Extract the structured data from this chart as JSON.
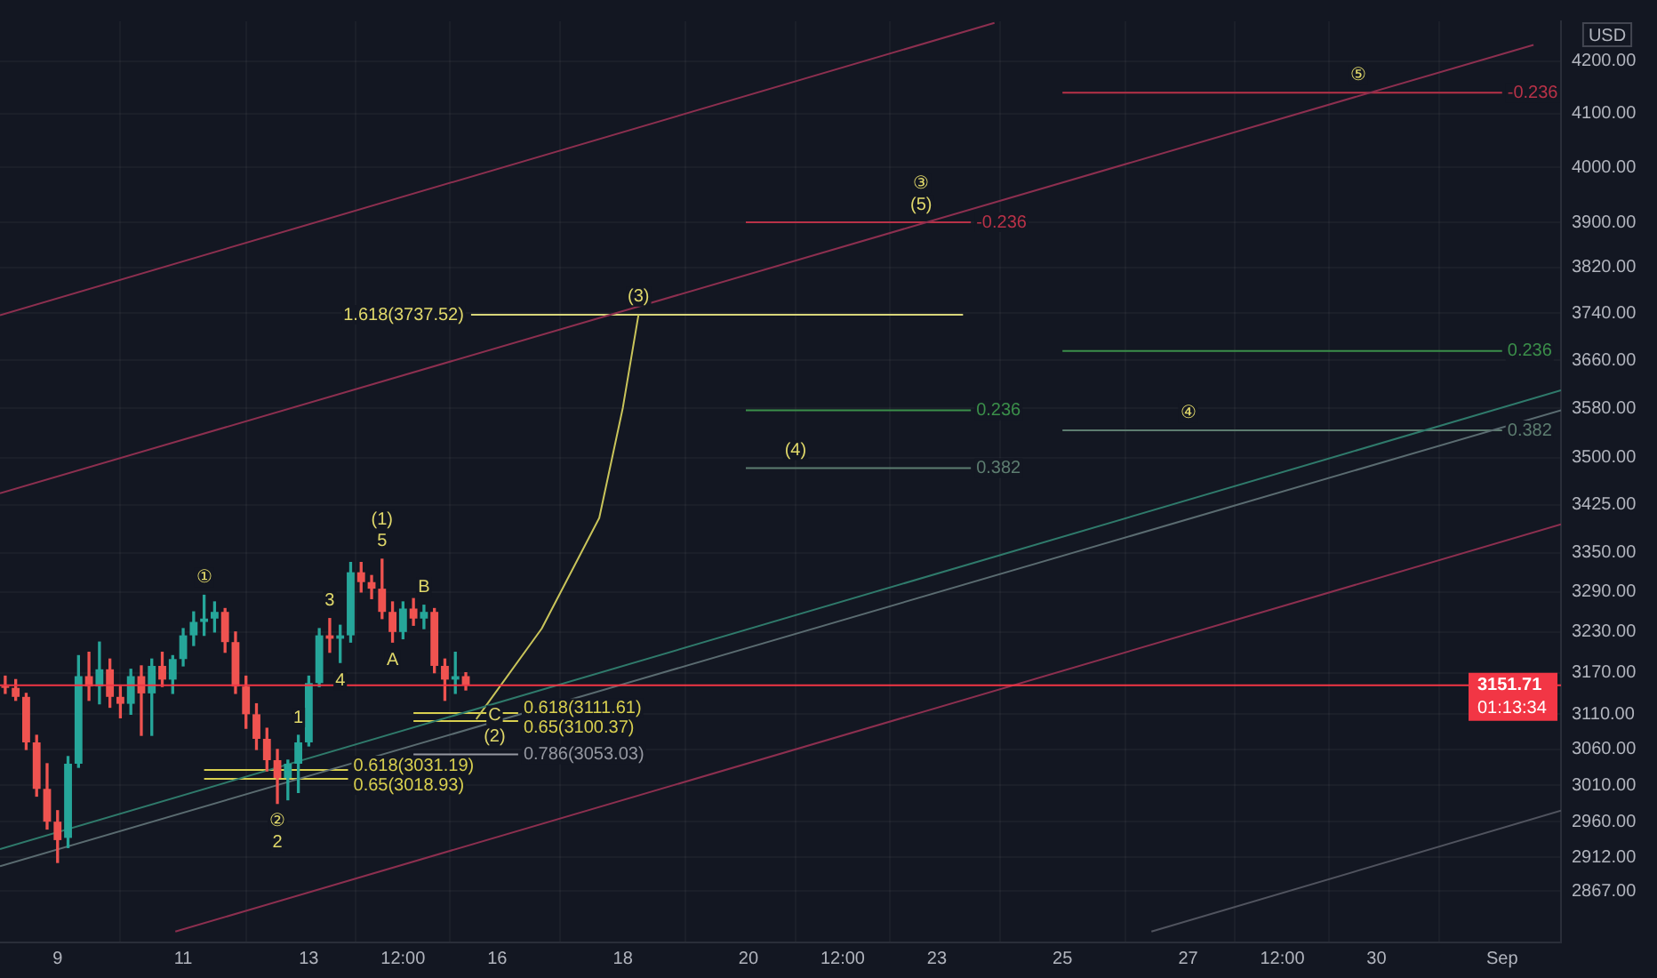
{
  "chart_data": {
    "type": "candlestick",
    "ylabel": "USD",
    "log": true,
    "grid": true,
    "x": [
      "--08-08T04:00",
      "--08-08T08:00",
      "--08-08T12:00",
      "--08-08T16:00",
      "--08-08T20:00",
      "--08-09T00:00",
      "--08-09T04:00",
      "--08-09T08:00",
      "--08-09T12:00",
      "--08-09T16:00",
      "--08-09T20:00",
      "--08-10T00:00",
      "--08-10T04:00",
      "--08-10T08:00",
      "--08-10T12:00",
      "--08-10T16:00",
      "--08-10T20:00",
      "--08-11T00:00",
      "--08-11T04:00",
      "--08-11T08:00",
      "--08-11T12:00",
      "--08-11T16:00",
      "--08-11T20:00",
      "--08-12T00:00",
      "--08-12T04:00",
      "--08-12T08:00",
      "--08-12T12:00",
      "--08-12T16:00",
      "--08-12T20:00",
      "--08-13T00:00",
      "--08-13T04:00",
      "--08-13T08:00",
      "--08-13T12:00",
      "--08-13T16:00",
      "--08-13T20:00",
      "--08-14T00:00",
      "--08-14T04:00",
      "--08-14T08:00",
      "--08-14T12:00",
      "--08-14T16:00",
      "--08-14T20:00",
      "--08-15T00:00",
      "--08-15T04:00",
      "--08-15T08:00",
      "--08-15T12:00"
    ],
    "ohlc": [
      [
        3150,
        3165,
        3140,
        3148
      ],
      [
        3148,
        3160,
        3130,
        3135
      ],
      [
        3135,
        3140,
        3060,
        3070
      ],
      [
        3070,
        3080,
        2995,
        3005
      ],
      [
        3005,
        3040,
        2950,
        2960
      ],
      [
        2960,
        2975,
        2905,
        2935
      ],
      [
        2938,
        3050,
        2925,
        3040
      ],
      [
        3040,
        3195,
        3035,
        3165
      ],
      [
        3165,
        3200,
        3130,
        3150
      ],
      [
        3150,
        3215,
        3125,
        3175
      ],
      [
        3175,
        3190,
        3120,
        3135
      ],
      [
        3135,
        3150,
        3105,
        3125
      ],
      [
        3125,
        3175,
        3110,
        3165
      ],
      [
        3165,
        3180,
        3080,
        3140
      ],
      [
        3140,
        3190,
        3080,
        3180
      ],
      [
        3180,
        3200,
        3150,
        3160
      ],
      [
        3160,
        3195,
        3140,
        3190
      ],
      [
        3190,
        3235,
        3180,
        3225
      ],
      [
        3225,
        3260,
        3210,
        3245
      ],
      [
        3245,
        3285,
        3225,
        3250
      ],
      [
        3250,
        3275,
        3230,
        3260
      ],
      [
        3260,
        3265,
        3200,
        3215
      ],
      [
        3215,
        3230,
        3140,
        3150
      ],
      [
        3150,
        3165,
        3090,
        3110
      ],
      [
        3110,
        3125,
        3060,
        3075
      ],
      [
        3075,
        3090,
        3030,
        3045
      ],
      [
        3045,
        3060,
        2985,
        3020
      ],
      [
        3020,
        3045,
        2990,
        3040
      ],
      [
        3040,
        3080,
        3000,
        3070
      ],
      [
        3070,
        3165,
        3065,
        3155
      ],
      [
        3155,
        3235,
        3150,
        3225
      ],
      [
        3225,
        3250,
        3200,
        3220
      ],
      [
        3220,
        3240,
        3185,
        3225
      ],
      [
        3225,
        3335,
        3215,
        3320
      ],
      [
        3320,
        3335,
        3290,
        3305
      ],
      [
        3305,
        3315,
        3280,
        3295
      ],
      [
        3295,
        3340,
        3250,
        3260
      ],
      [
        3260,
        3275,
        3215,
        3230
      ],
      [
        3230,
        3275,
        3220,
        3265
      ],
      [
        3265,
        3280,
        3240,
        3250
      ],
      [
        3250,
        3270,
        3235,
        3260
      ],
      [
        3260,
        3265,
        3170,
        3180
      ],
      [
        3180,
        3190,
        3130,
        3160
      ],
      [
        3160,
        3200,
        3140,
        3165
      ],
      [
        3165,
        3170,
        3145,
        3151.71
      ]
    ],
    "colors": [
      "#ef5350",
      "#ef5350",
      "#ef5350",
      "#ef5350",
      "#ef5350",
      "#ef5350",
      "#26a69a",
      "#26a69a",
      "#ef5350",
      "#26a69a",
      "#ef5350",
      "#ef5350",
      "#26a69a",
      "#ef5350",
      "#26a69a",
      "#ef5350",
      "#26a69a",
      "#26a69a",
      "#26a69a",
      "#26a69a",
      "#26a69a",
      "#ef5350",
      "#ef5350",
      "#ef5350",
      "#ef5350",
      "#ef5350",
      "#ef5350",
      "#26a69a",
      "#26a69a",
      "#26a69a",
      "#26a69a",
      "#ef5350",
      "#26a69a",
      "#26a69a",
      "#ef5350",
      "#ef5350",
      "#ef5350",
      "#ef5350",
      "#26a69a",
      "#ef5350",
      "#26a69a",
      "#ef5350",
      "#ef5350",
      "#26a69a",
      "#ef5350"
    ],
    "series": [
      {
        "type": "line",
        "color": "#8c2f4f",
        "x": [
          "--08-08T02:00",
          "--08-23T22:00"
        ],
        "values": [
          3737,
          4275
        ]
      },
      {
        "type": "line",
        "color": "#8c2f4f",
        "x": [
          "--08-08T02:00",
          "--09-01T12:00"
        ],
        "values": [
          3443,
          4232
        ]
      },
      {
        "type": "line",
        "color": "#8c2f4f",
        "x": [
          "--08-10T21:00",
          "--09-01T22:30"
        ],
        "values": [
          2814,
          3394
        ]
      },
      {
        "type": "line",
        "color": "#50535e",
        "x": [
          "--08-26T10:00",
          "--09-01T22:30"
        ],
        "values": [
          2814,
          2975
        ]
      },
      {
        "type": "line",
        "color": "#2f7a6b",
        "x": [
          "--08-08T02:00",
          "--09-01T22:30"
        ],
        "values": [
          2923,
          3610
        ]
      },
      {
        "type": "line",
        "color": "#5a6b70",
        "x": [
          "--08-08T02:00",
          "--09-01T22:30"
        ],
        "values": [
          2900,
          3577
        ]
      },
      {
        "type": "line",
        "color": "#c9c45a",
        "x": [
          "--08-15T16:00",
          "--08-16T17:00",
          "--08-17T15:00",
          "--08-18T00:00",
          "--08-18T06:00"
        ],
        "values": [
          3103,
          3235,
          3404,
          3581,
          3738
        ]
      },
      {
        "type": "line",
        "name": "0.618(3031.19)",
        "color": "#d8cf4f",
        "x": [
          "--08-11T08:00",
          "--08-13T15:00"
        ],
        "values": [
          3031.19,
          3031.19
        ]
      },
      {
        "type": "line",
        "name": "0.65(3018.93)",
        "color": "#d8cf4f",
        "x": [
          "--08-11T08:00",
          "--08-13T15:00"
        ],
        "values": [
          3018.93,
          3018.93
        ]
      },
      {
        "type": "line",
        "name": "0.618(3111.61)",
        "color": "#d8cf4f",
        "x": [
          "--08-14T16:00",
          "--08-16T08:00"
        ],
        "values": [
          3111.61,
          3111.61
        ]
      },
      {
        "type": "line",
        "name": "0.65(3100.37)",
        "color": "#d8cf4f",
        "x": [
          "--08-14T16:00",
          "--08-16T08:00"
        ],
        "values": [
          3100.37,
          3100.37
        ]
      },
      {
        "type": "line",
        "name": "0.786(3053.03)",
        "color": "#9598a1",
        "x": [
          "--08-14T16:00",
          "--08-16T08:00"
        ],
        "values": [
          3053.03,
          3053.03
        ]
      },
      {
        "type": "line",
        "color": "#d8d67a",
        "x": [
          "--08-15T14:00",
          "--08-23T10:00"
        ],
        "values": [
          3737.52,
          3737.52
        ]
      },
      {
        "type": "line",
        "name": "-0.236",
        "color": "#b83248",
        "x": [
          "--08-19T23:00",
          "--08-23T13:00"
        ],
        "values": [
          3900,
          3900
        ]
      },
      {
        "type": "line",
        "name": "0.236",
        "color": "#3b8f4a",
        "x": [
          "--08-19T23:00",
          "--08-23T13:00"
        ],
        "values": [
          3577,
          3577
        ]
      },
      {
        "type": "line",
        "name": "0.382",
        "color": "#5d7d70",
        "x": [
          "--08-19T23:00",
          "--08-23T13:00"
        ],
        "values": [
          3483,
          3483
        ]
      },
      {
        "type": "line",
        "name": "-0.236",
        "color": "#b83248",
        "x": [
          "--08-25T00:00",
          "--09-01T00:00"
        ],
        "values": [
          4140,
          4140
        ]
      },
      {
        "type": "line",
        "name": "0.236",
        "color": "#3b8f4a",
        "x": [
          "--08-25T00:00",
          "--09-01T00:00"
        ],
        "values": [
          3676,
          3676
        ]
      },
      {
        "type": "line",
        "name": "0.382",
        "color": "#5d7d70",
        "x": [
          "--08-25T00:00",
          "--09-01T00:00"
        ],
        "values": [
          3544,
          3544
        ]
      }
    ],
    "ref_lines": [
      {
        "axis": "y",
        "value": 3151.71,
        "label": "3151.71",
        "color": "#f23645"
      }
    ],
    "annotations": [
      {
        "text": "1.618(3737.52)",
        "x": "--08-15T14:00",
        "y": 3737.52
      },
      {
        "text": "①",
        "x": "--08-11T08:00",
        "y": 3285
      },
      {
        "text": "5",
        "x": "--08-14T04:00",
        "y": 3340
      },
      {
        "text": "(1)",
        "x": "--08-14T04:00",
        "y": 3340
      },
      {
        "text": "3",
        "x": "--08-13T08:00",
        "y": 3250
      },
      {
        "text": "4",
        "x": "--08-13T12:00",
        "y": 3185
      },
      {
        "text": "B",
        "x": "--08-14T20:00",
        "y": 3270
      },
      {
        "text": "A",
        "x": "--08-14T08:00",
        "y": 3215
      },
      {
        "text": "②",
        "x": "--08-12T12:00",
        "y": 2985
      },
      {
        "text": "2",
        "x": "--08-12T12:00",
        "y": 2985
      },
      {
        "text": "1",
        "x": "--08-12T20:00",
        "y": 3080
      },
      {
        "text": "(2)",
        "x": "--08-15T23:00",
        "y": 3053.03
      },
      {
        "text": "C",
        "x": "--08-15T23:00",
        "y": 3053.03
      },
      {
        "text": "(3)",
        "x": "--08-18T06:00",
        "y": 3738
      },
      {
        "text": "(5)",
        "x": "--08-22T18:00",
        "y": 3900
      },
      {
        "text": "③",
        "x": "--08-22T18:00",
        "y": 3900
      },
      {
        "text": "(4)",
        "x": "--08-20T18:00",
        "y": 3483
      },
      {
        "text": "④",
        "x": "--08-27T00:00",
        "y": 3544
      },
      {
        "text": "⑤",
        "x": "--08-29T17:00",
        "y": 4140
      },
      "01:13:34"
    ],
    "xlim": [
      "--08-08T02:00",
      "--09-01T22:30"
    ],
    "xticks": [
      {
        "value": "--08-09",
        "label": "9"
      },
      {
        "value": "--08-11",
        "label": "11"
      },
      {
        "value": "--08-13",
        "label": "13"
      },
      {
        "value": "--08-14T12:00",
        "label": "12:00"
      },
      {
        "value": "--08-16",
        "label": "16"
      },
      {
        "value": "--08-18",
        "label": "18"
      },
      {
        "value": "--08-20",
        "label": "20"
      },
      {
        "value": "--08-21T12:00",
        "label": "12:00"
      },
      {
        "value": "--08-23",
        "label": "23"
      },
      {
        "value": "--08-25",
        "label": "25"
      },
      {
        "value": "--08-27",
        "label": "27"
      },
      {
        "value": "--08-28T12:00",
        "label": "12:00"
      },
      {
        "value": "--08-30",
        "label": "30"
      },
      {
        "value": "--09-01",
        "label": "Sep"
      }
    ],
    "ylim": [
      2800,
      4278
    ],
    "yticks": [
      {
        "value": 2867,
        "label": "2867.00"
      },
      {
        "value": 2912,
        "label": "2912.00"
      },
      {
        "value": 2960,
        "label": "2960.00"
      },
      {
        "value": 3010,
        "label": "3010.00"
      },
      {
        "value": 3060,
        "label": "3060.00"
      },
      {
        "value": 3110,
        "label": "3110.00"
      },
      {
        "value": 3170,
        "label": "3170.00"
      },
      {
        "value": 3230,
        "label": "3230.00"
      },
      {
        "value": 3290,
        "label": "3290.00"
      },
      {
        "value": 3350,
        "label": "3350.00"
      },
      {
        "value": 3425,
        "label": "3425.00"
      },
      {
        "value": 3500,
        "label": "3500.00"
      },
      {
        "value": 3580,
        "label": "3580.00"
      },
      {
        "value": 3660,
        "label": "3660.00"
      },
      {
        "value": 3740,
        "label": "3740.00"
      },
      {
        "value": 3820,
        "label": "3820.00"
      },
      {
        "value": 3900,
        "label": "3900.00"
      },
      {
        "value": 4000,
        "label": "4000.00"
      },
      {
        "value": 4100,
        "label": "4100.00"
      },
      {
        "value": 4200,
        "label": "4200.00"
      }
    ]
  }
}
